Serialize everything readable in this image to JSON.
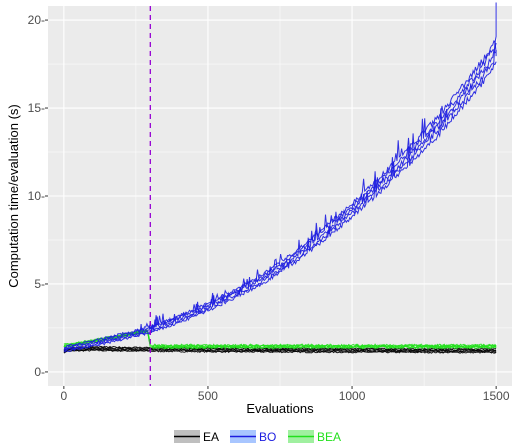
{
  "chart_data": {
    "type": "line",
    "title": "",
    "xlabel": "Evaluations",
    "ylabel": "Computation time/evaluation (s)",
    "xlim": [
      -55,
      1555
    ],
    "ylim": [
      -0.8,
      20.8
    ],
    "x_ticks": [
      0,
      500,
      1000,
      1500
    ],
    "x_tick_labels": [
      "0",
      "500",
      "1000",
      "1500"
    ],
    "y_ticks": [
      0,
      5,
      10,
      15,
      20
    ],
    "y_tick_labels": [
      "0-",
      "5-",
      "10-",
      "15-",
      "20-"
    ],
    "grid": true,
    "panel_background": "#ebebeb",
    "legend_position": "bottom",
    "vline": {
      "x": 300,
      "color": "#9400d3",
      "style": "dashed"
    },
    "series": [
      {
        "name": "EA",
        "color": "#000000",
        "runs": 5,
        "x": [
          0,
          20,
          50,
          100,
          200,
          300,
          500,
          800,
          1100,
          1500
        ],
        "values": [
          1.2,
          1.28,
          1.3,
          1.32,
          1.3,
          1.28,
          1.25,
          1.23,
          1.22,
          1.2
        ]
      },
      {
        "name": "BO",
        "color": "#1c1ce0",
        "runs": 5,
        "x": [
          0,
          100,
          200,
          300,
          400,
          500,
          600,
          700,
          800,
          900,
          1000,
          1100,
          1200,
          1300,
          1400,
          1450,
          1500
        ],
        "values": [
          1.3,
          1.6,
          2.0,
          2.4,
          3.0,
          3.7,
          4.5,
          5.4,
          6.5,
          7.8,
          9.2,
          10.7,
          12.3,
          14.0,
          16.0,
          17.0,
          18.3
        ]
      },
      {
        "name": "BEA",
        "color": "#22e01c",
        "runs": 5,
        "x": [
          0,
          50,
          100,
          200,
          290,
          300,
          500,
          800,
          1100,
          1500
        ],
        "values": [
          1.5,
          1.6,
          1.75,
          2.05,
          2.35,
          1.5,
          1.48,
          1.47,
          1.46,
          1.45
        ]
      }
    ]
  },
  "legend": {
    "items": [
      {
        "label": "EA",
        "color": "#000000",
        "fill": "#bfbfbf"
      },
      {
        "label": "BO",
        "color": "#1c1ce0",
        "fill": "#a8c6ff"
      },
      {
        "label": "BEA",
        "color": "#22e01c",
        "fill": "#a0f0a0"
      }
    ]
  }
}
